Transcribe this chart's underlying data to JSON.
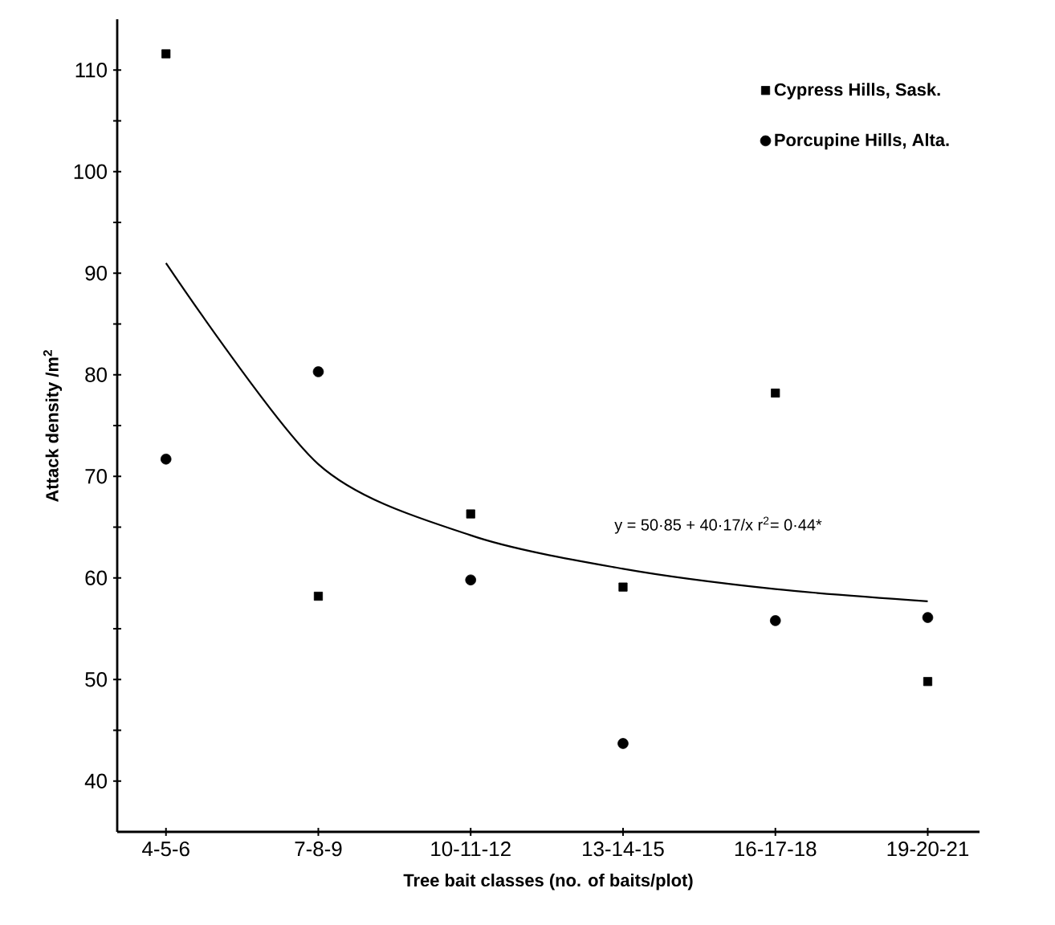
{
  "chart_data": {
    "type": "scatter",
    "xlabel": "Tree bait classes (no. of baits/plot)",
    "ylabel": "Attack density /m$^{2}$",
    "categories": [
      "4-5-6",
      "7-8-9",
      "10-11-12",
      "13-14-15",
      "16-17-18",
      "19-20-21"
    ],
    "series": [
      {
        "name": "Cypress Hills, Sask.",
        "color": "#000000",
        "marker": "square",
        "values": [
          111.6,
          58.2,
          66.3,
          59.1,
          78.2,
          49.8
        ]
      },
      {
        "name": "Porcupine Hills, Alta.",
        "color": "#000000",
        "marker": "circle",
        "values": [
          71.7,
          80.3,
          59.8,
          43.7,
          55.8,
          56.1
        ]
      },
      {
        "type": "line",
        "color": "#000000",
        "marker": "none",
        "line_style": "solid",
        "values": [
          91.0,
          71.2,
          64.2,
          60.9,
          58.9,
          57.7
        ]
      }
    ],
    "ylim": [
      35,
      115
    ],
    "yticks": [
      40,
      {
        "value": 45,
        "label": null
      },
      50,
      {
        "value": 55,
        "label": null
      },
      60,
      {
        "value": 65,
        "label": null
      },
      70,
      {
        "value": 75,
        "label": null
      },
      80,
      {
        "value": 85,
        "label": null
      },
      90,
      {
        "value": 95,
        "label": null
      },
      100,
      {
        "value": 105,
        "label": null
      },
      110
    ],
    "legend": "top right",
    "annotations": [
      "y = 50·85 + 40·17/x    r$^{2}$= 0·44*"
    ]
  }
}
